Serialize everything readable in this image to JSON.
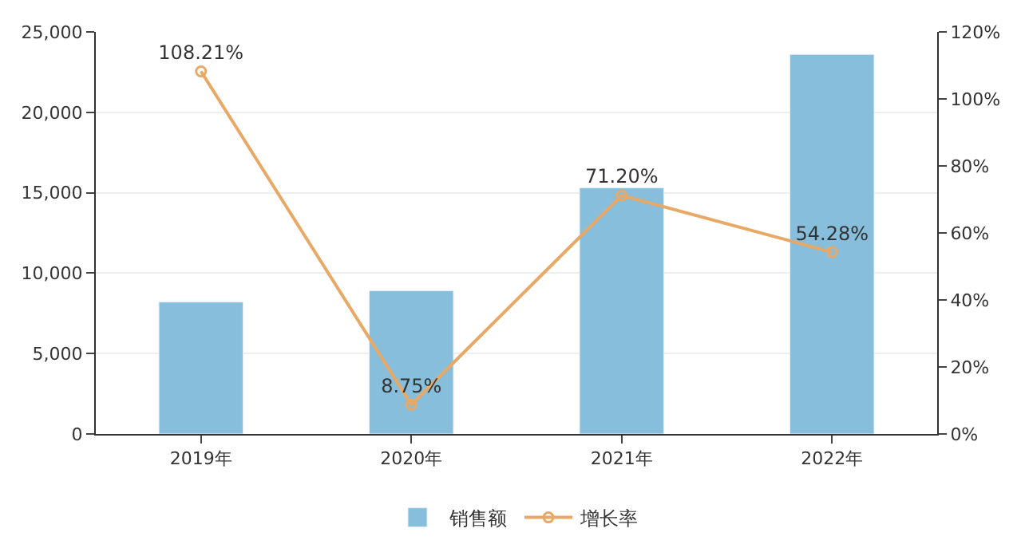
{
  "chart_data": {
    "type": "bar",
    "categories": [
      "2019年",
      "2020年",
      "2021年",
      "2022年"
    ],
    "series": [
      {
        "name": "销售额",
        "color": "#86bedb",
        "values": [
          8200,
          8900,
          15300,
          23600
        ]
      },
      {
        "name": "增长率",
        "type": "line",
        "axis": "y2",
        "color": "#e8a866",
        "values": [
          108.21,
          8.75,
          71.2,
          54.28
        ],
        "value_labels": [
          "108.21%",
          "8.75%",
          "71.20%",
          "54.28%"
        ],
        "marker": "circle",
        "line_style": "solid"
      }
    ],
    "ylim": [
      0,
      25000
    ],
    "yticks": [
      {
        "value": 0,
        "label": "0"
      },
      {
        "value": 5000,
        "label": "5,000"
      },
      {
        "value": 10000,
        "label": "10,000"
      },
      {
        "value": 15000,
        "label": "15,000"
      },
      {
        "value": 20000,
        "label": "20,000"
      },
      {
        "value": 25000,
        "label": "25,000"
      }
    ],
    "y2lim": [
      0,
      120
    ],
    "y2ticks": [
      {
        "value": 0,
        "label": "0%"
      },
      {
        "value": 20,
        "label": "20%"
      },
      {
        "value": 40,
        "label": "40%"
      },
      {
        "value": 60,
        "label": "60%"
      },
      {
        "value": 80,
        "label": "80%"
      },
      {
        "value": 100,
        "label": "100%"
      },
      {
        "value": 120,
        "label": "120%"
      }
    ],
    "grid": "y",
    "legend": "bottom"
  }
}
